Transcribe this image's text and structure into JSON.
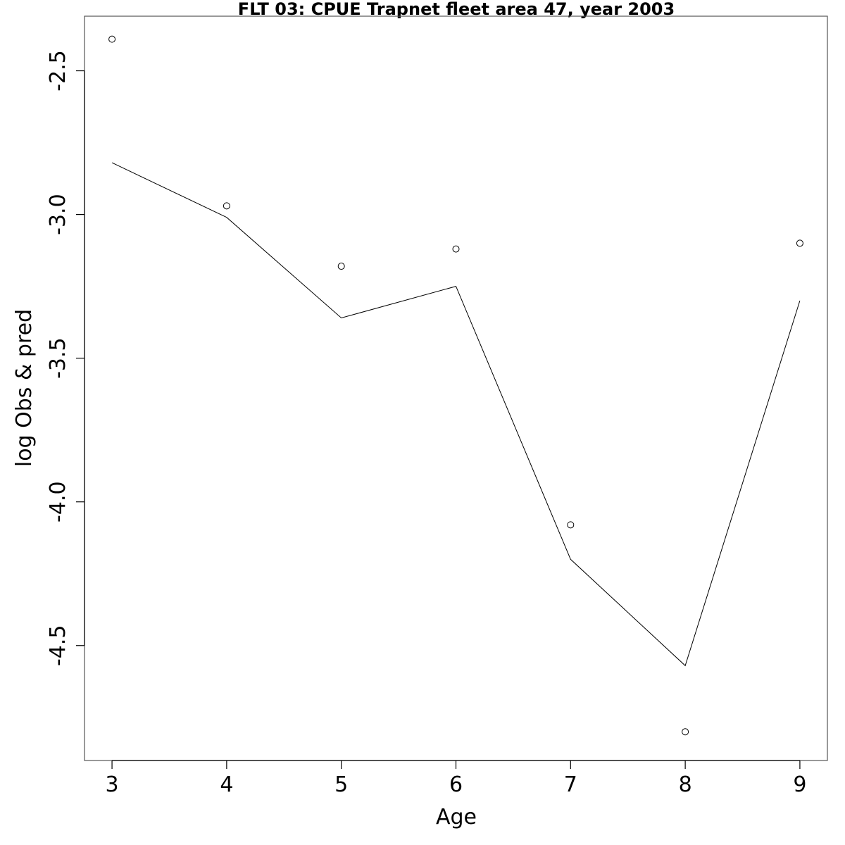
{
  "chart_data": {
    "type": "line",
    "title": "FLT 03: CPUE Trapnet fleet area 47, year 2003",
    "xlabel": "Age",
    "ylabel": "log Obs & pred",
    "x": [
      3,
      4,
      5,
      6,
      7,
      8,
      9
    ],
    "xlim": [
      2.76,
      9.24
    ],
    "ylim": [
      -4.9,
      -2.31
    ],
    "x_ticks": [
      3,
      4,
      5,
      6,
      7,
      8,
      9
    ],
    "y_ticks": [
      -4.5,
      -4.0,
      -3.5,
      -3.0,
      -2.5
    ],
    "x_tick_labels": [
      "3",
      "4",
      "5",
      "6",
      "7",
      "8",
      "9"
    ],
    "y_tick_labels": [
      "-4.5",
      "-4.0",
      "-3.5",
      "-3.0",
      "-2.5"
    ],
    "grid": false,
    "legend": "none",
    "series": [
      {
        "style": "points",
        "values": [
          -2.39,
          -2.97,
          -3.18,
          -3.12,
          -4.08,
          -4.8,
          -3.1
        ]
      },
      {
        "style": "line",
        "values": [
          -2.82,
          -3.01,
          -3.36,
          -3.25,
          -4.2,
          -4.57,
          -3.3
        ]
      }
    ]
  }
}
